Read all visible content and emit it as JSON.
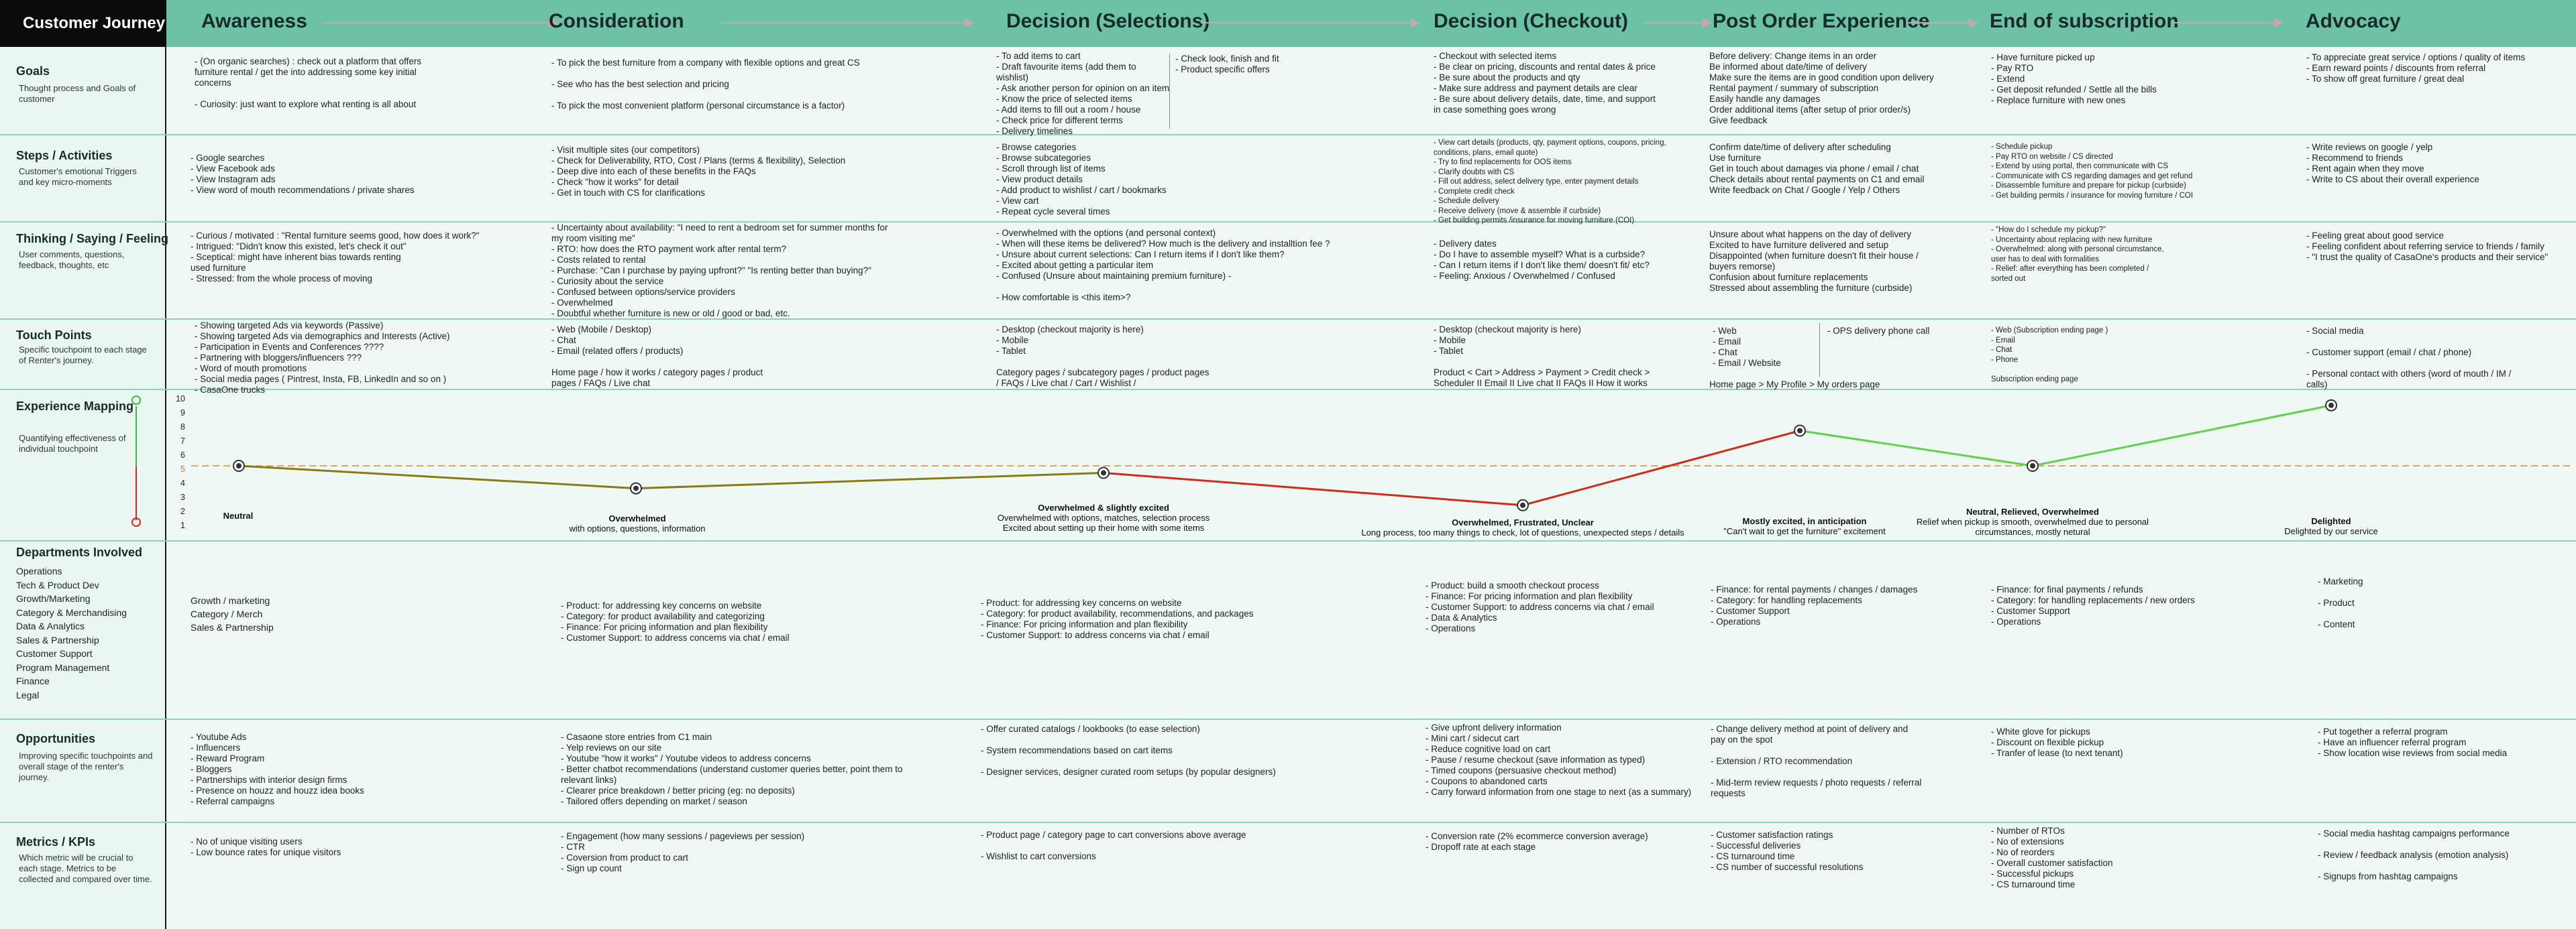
{
  "header": {
    "corner_title": "Customer Journey",
    "stages": [
      "Awareness",
      "Consideration",
      "Decision (Selections)",
      "Decision (Checkout)",
      "Post Order Experience",
      "End of subscription",
      "Advocacy"
    ]
  },
  "rows": {
    "goals": {
      "title": "Goals",
      "desc": "Thought process and Goals of customer"
    },
    "steps": {
      "title": "Steps / Activities",
      "desc": "Customer's emotional Triggers and key micro-moments"
    },
    "thinking": {
      "title": "Thinking / Saying / Feeling",
      "desc": "User comments, questions, feedback, thoughts, etc"
    },
    "touch": {
      "title": "Touch Points",
      "desc": "Specific touchpoint to each stage of Renter's journey."
    },
    "experience": {
      "title": "Experience Mapping",
      "desc": "Quantifying effectiveness of individual touchpoint"
    },
    "departments": {
      "title": "Departments Involved"
    },
    "opportunities": {
      "title": "Opportunities",
      "desc": "Improving specific touchpoints and overall stage of the renter's journey."
    },
    "metrics": {
      "title": "Metrics / KPIs",
      "desc": "Which metric will be crucial to each stage. Metrics to be collected and compared over time."
    }
  },
  "departments_list": [
    "Operations",
    "Tech & Product Dev",
    "Growth/Marketing",
    "Category & Merchandising",
    "Data & Analytics",
    "Sales & Partnership",
    "Customer Support",
    "Program Management",
    "Finance",
    "Legal"
  ],
  "goals": {
    "awareness": "- (On organic searches) : check out a platform that offers\nfurniture rental / get the into addressing some key initial\nconcerns\n\n- Curiosity: just want to explore what renting is all about",
    "consideration": "- To pick the best furniture from a company with flexible options and great CS\n\n- See who has the best selection and pricing\n\n- To pick the most convenient platform (personal circumstance is a factor)",
    "selections_a": "- To add items to cart\n- Draft favourite items (add them to wishlist)\n- Ask another person for opinion on an item\n- Know the price of selected items\n- Add items to fill out a room / house\n- Check price for different terms\n- Delivery timelines",
    "selections_b": "- Check look, finish and fit\n- Product specific offers",
    "checkout": "- Checkout with selected items\n- Be clear on pricing, discounts and rental dates & price\n- Be sure about the products and qty\n- Make sure address and payment details are clear\n- Be sure about delivery details, date, time, and support\nin case something goes wrong",
    "post_order": "Before delivery: Change items in an order\nBe informed about date/time of delivery\nMake sure the items are in good condition upon delivery\nRental payment / summary of subscription\nEasily handle any damages\nOrder additional items (after setup of prior order/s)\nGive feedback",
    "end": "- Have furniture picked up\n- Pay RTO\n- Extend\n- Get deposit refunded / Settle all the bills\n- Replace furniture with new ones",
    "advocacy": "- To appreciate great service / options / quality of items\n- Earn reward points / discounts from referral\n- To show off great furniture / great deal"
  },
  "steps": {
    "awareness": "- Google searches\n- View Facebook ads\n- View Instagram ads\n- View word of mouth recommendations / private shares",
    "consideration": "- Visit multiple sites (our competitors)\n- Check for Deliverability, RTO, Cost / Plans (terms & flexibility), Selection\n- Deep dive into each of these benefits in the FAQs\n- Check \"how it works\" for detail\n- Get in touch with CS for clarifications",
    "selections": "- Browse categories\n- Browse subcategories\n- Scroll through list of items\n- View product details\n- Add product to wishlist / cart / bookmarks\n- View cart\n- Repeat cycle several times",
    "checkout": "- View cart details (products, qty, payment options, coupons, pricing,\nconditions, plans, email quote)\n- Try to find replacements for OOS items\n- Clarify doubts with CS\n- Fill out address, select delivery type, enter payment details\n- Complete credit check\n- Schedule delivery\n- Receive delivery (move & assemble if curbside)\n- Get building permits /insurance for moving furniture (COI)",
    "post_order": "Confirm date/time of delivery after scheduling\nUse furniture\nGet in touch about damages via phone / email / chat\nCheck details about rental payments on C1 and email\nWrite feedback on Chat / Google / Yelp / Others",
    "end": "- Schedule pickup\n- Pay RTO on website / CS directed\n- Extend by using portal, then communicate with CS\n- Communicate with CS regarding damages and get refund\n- Disassemble furniture and prepare for pickup (curbside)\n- Get building permits / insurance for moving furniture / COI",
    "advocacy": "- Write reviews on google / yelp\n- Recommend to friends\n- Rent again when they move\n- Write to CS about their overall experience"
  },
  "thinking": {
    "awareness": "- Curious / motivated : \"Rental furniture seems good, how does it work?\"\n- Intrigued: \"Didn't know this existed, let's check it out\"\n- Sceptical: might have inherent bias towards renting\nused furniture\n- Stressed: from the whole process of moving",
    "consideration": "- Uncertainty about availability: \"I need to rent a bedroom set for summer months for\nmy room visiting me\"\n- RTO: how does the RTO payment work after rental term?\n- Costs related to rental\n- Purchase: \"Can I purchase by paying upfront?\" \"Is renting better than buying?\"\n- Curiosity about the service\n- Confused between options/service providers\n- Overwhelmed\n- Doubtful whether furniture is new or old / good or bad, etc.",
    "selections": "- Overwhelmed with the options (and personal context)\n- When will these items be delivered? How much is the delivery and installtion fee ?\n- Unsure about current selections: Can I return items if I don't like them?\n- Excited about getting a particular item\n- Confused (Unsure about maintaining premium furniture) -\n\n- How comfortable is <this item>?",
    "checkout": "- Delivery dates\n- Do I have to assemble myself? What is a curbside?\n- Can I return items if I don't like them/ doesn't fit/ etc?\n- Feeling: Anxious / Overwhelmed / Confused",
    "post_order": "Unsure about what happens on the day of delivery\nExcited to have furniture delivered and setup\nDisappointed (when furniture doesn't fit their house /\nbuyers remorse)\nConfusion about furniture replacements\nStressed about assembling the furniture (curbside)",
    "end": "- \"How do I schedule my pickup?\"\n- Uncertainty about replacing with new furniture\n- Overwhelmed: along with personal circumstance,\nuser has to deal with formalities\n- Relief: after everything has been completed /\nsorted out",
    "advocacy": "- Feeling great about good service\n- Feeling confident about referring service to friends / family\n- \"I trust the quality of CasaOne's products and their service\""
  },
  "touch": {
    "awareness": "- Showing targeted Ads via keywords (Passive)\n- Showing targeted Ads via demographics and Interests (Active)\n- Participation in Events and Conferences ????\n- Partnering with bloggers/influencers ???\n- Word of mouth promotions\n- Social media pages ( Pintrest, Insta, FB, LinkedIn and so on )\n- CasaOne trucks",
    "consideration": "- Web (Mobile / Desktop)\n- Chat\n- Email (related offers / products)\n\nHome page / how it works / category pages / product\npages / FAQs / Live chat",
    "selections": "- Desktop (checkout majority is here)\n- Mobile\n- Tablet\n\nCategory pages / subcategory pages / product pages\n/ FAQs / Live chat / Cart / Wishlist /",
    "checkout": "- Desktop (checkout majority is here)\n- Mobile\n- Tablet\n\nProduct < Cart > Address > Payment > Credit check >\nScheduler II Email II Live chat II FAQs II How it works",
    "post_order_a": "- Web\n- Email\n- Chat\n- Email / Website",
    "post_order_b": "- OPS delivery phone call",
    "post_order_c": "Home page > My Profile > My orders page",
    "end": "- Web (Subscription ending page )\n- Email\n- Chat\n- Phone\n\nSubscription ending page",
    "advocacy": "- Social media\n\n- Customer support (email / chat / phone)\n\n- Personal contact with others (word of mouth / IM /\ncalls)"
  },
  "experience": {
    "yticks": [
      "10",
      "9",
      "8",
      "7",
      "6",
      "5",
      "4",
      "3",
      "2",
      "1"
    ],
    "points": [
      {
        "title": "Neutral",
        "sub": "",
        "score": 5
      },
      {
        "title": "Overwhelmed",
        "sub": "with options, questions, information",
        "score": 3.4
      },
      {
        "title": "Overwhelmed & slightly excited",
        "sub": "Overwhelmed with options, matches, selection process\nExcited about setting up their home with some items",
        "score": 4.5
      },
      {
        "title": "Overwhelmed, Frustrated, Unclear",
        "sub": "Long process, too many things to check, lot of questions, unexpected steps / details",
        "score": 2.2
      },
      {
        "title": "Mostly excited, in anticipation",
        "sub": "\"Can't wait to get the furniture\" excitement",
        "score": 7.5
      },
      {
        "title": "Neutral, Relieved, Overwhelmed",
        "sub": "Relief when pickup is smooth, overwhelmed due to personal\ncircumstances, mostly netural",
        "score": 5
      },
      {
        "title": "Delighted",
        "sub": "Delighted by our service",
        "score": 9.3
      }
    ]
  },
  "departments": {
    "awareness": "Growth / marketing\nCategory / Merch\nSales & Partnership",
    "consideration": "- Product: for addressing key concerns on website\n- Category: for product availability and categorizing\n- Finance: For pricing information and plan flexibility\n- Customer Support: to address concerns via chat / email",
    "selections": "- Product: for addressing key concerns on website\n- Category: for product availability, recommendations, and packages\n- Finance: For pricing information and plan flexibility\n- Customer Support: to address concerns via chat / email",
    "checkout": "- Product: build a smooth checkout process\n- Finance: For pricing information and plan flexibility\n- Customer Support: to address concerns via chat / email\n- Data & Analytics\n- Operations",
    "post_order": "- Finance: for rental payments / changes / damages\n- Category: for handling replacements\n- Customer Support\n- Operations",
    "end": "- Finance: for final payments / refunds\n- Category: for handling replacements / new orders\n- Customer Support\n- Operations",
    "advocacy": "- Marketing\n\n- Product\n\n- Content"
  },
  "opportunities": {
    "awareness": "- Youtube Ads\n- Influencers\n- Reward Program\n- Bloggers\n- Partnerships with interior design firms\n- Presence on houzz and houzz idea books\n- Referral campaigns",
    "consideration": "- Casaone store entries from C1 main\n- Yelp reviews on our site\n- Youtube \"how it works\" / Youtube videos to address concerns\n- Better chatbot recommendations (understand customer queries better, point them to\nrelevant links)\n- Clearer price breakdown / better pricing (eg: no deposits)\n- Tailored offers depending on market / season",
    "selections": "- Offer curated catalogs / lookbooks (to ease selection)\n\n- System recommendations based on cart items\n\n- Designer services, designer curated room setups (by popular designers)",
    "checkout": "- Give upfront delivery information\n- Mini cart / sidecut cart\n- Reduce cognitive load on cart\n- Pause / resume checkout (save information as typed)\n- Timed coupons (persuasive checkout method)\n- Coupons to abandoned carts\n- Carry forward information from one stage to next (as a summary)",
    "post_order": "- Change delivery method at point of delivery and\npay on the spot\n\n- Extension /  RTO recommendation\n\n- Mid-term review requests / photo requests / referral\nrequests",
    "end": "- White glove for pickups\n- Discount on flexible pickup\n- Tranfer of lease (to next tenant)",
    "advocacy": "- Put together a referral program\n- Have an influencer referral program\n- Show location wise reviews from social media"
  },
  "metrics": {
    "awareness": "- No of unique visiting users\n- Low bounce rates for unique visitors",
    "consideration": "- Engagement (how many sessions / pageviews per session)\n- CTR\n- Coversion from product to cart\n- Sign up count",
    "selections": "- Product page / category page to cart conversions above average\n\n- Wishlist to cart conversions",
    "checkout": "- Conversion rate (2% ecommerce conversion average)\n- Dropoff rate at each stage",
    "post_order": "- Customer satisfaction ratings\n- Successful deliveries\n- CS turnaround time\n- CS number of successful resolutions",
    "end": "- Number of RTOs\n- No of extensions\n- No of reorders\n- Overall customer satisfaction\n- Successful pickups\n- CS turnaround time",
    "advocacy": "- Social media hashtag campaigns performance\n\n- Review / feedback analysis (emotion analysis)\n\n- Signups from hashtag campaigns"
  },
  "colors": {
    "header": "#6cc2a7",
    "positive": "#5fd14a",
    "negative": "#d42a1a",
    "mid": "#8a7a12",
    "baseline": "#e8a060"
  }
}
